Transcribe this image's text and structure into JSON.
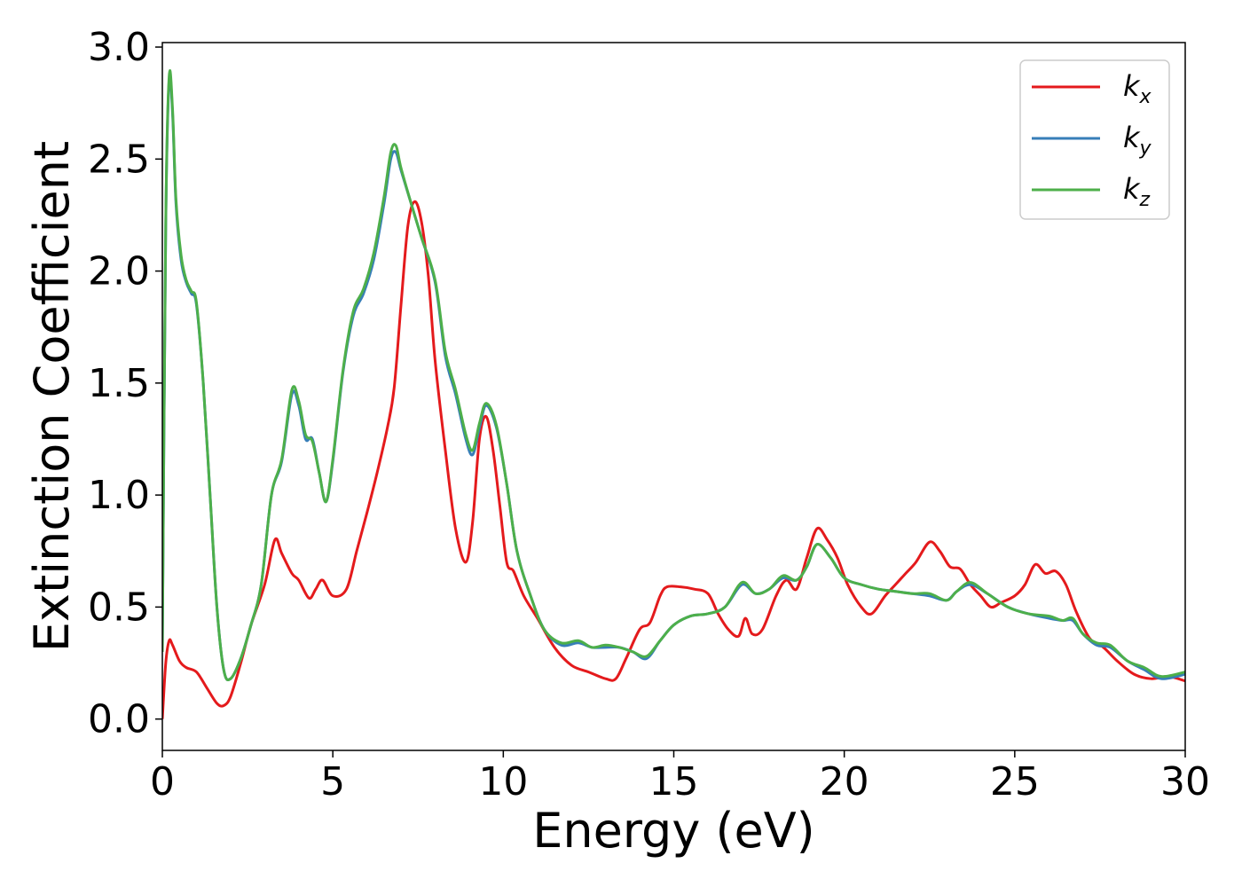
{
  "chart_data": {
    "type": "line",
    "xlabel": "Energy (eV)",
    "ylabel": "Extinction Coefficient",
    "xlim": [
      0,
      30
    ],
    "ylim": [
      -0.14,
      3.02
    ],
    "xticks": [
      0,
      5,
      10,
      15,
      20,
      25,
      30
    ],
    "xtick_labels": [
      "0",
      "5",
      "10",
      "15",
      "20",
      "25",
      "30"
    ],
    "yticks": [
      0.0,
      0.5,
      1.0,
      1.5,
      2.0,
      2.5,
      3.0
    ],
    "ytick_labels": [
      "0.0",
      "0.5",
      "1.0",
      "1.5",
      "2.0",
      "2.5",
      "3.0"
    ],
    "grid": false,
    "legend_position": "top-right",
    "series": [
      {
        "name": "k_x",
        "label_base": "k",
        "label_sub": "x",
        "color": "#e41a1c",
        "x": [
          0,
          0.1,
          0.2,
          0.3,
          0.5,
          0.7,
          1.0,
          1.3,
          1.6,
          1.8,
          2.0,
          2.3,
          2.6,
          3.0,
          3.3,
          3.5,
          3.8,
          4.0,
          4.3,
          4.5,
          4.7,
          5.0,
          5.4,
          5.7,
          6.0,
          6.3,
          6.6,
          6.8,
          7.0,
          7.2,
          7.4,
          7.6,
          7.8,
          8.0,
          8.3,
          8.6,
          8.9,
          9.1,
          9.3,
          9.5,
          9.7,
          9.9,
          10.1,
          10.3,
          10.6,
          11.0,
          11.5,
          12.0,
          12.5,
          13.0,
          13.3,
          13.6,
          14.0,
          14.3,
          14.6,
          14.8,
          15.2,
          15.6,
          16.0,
          16.3,
          16.6,
          16.9,
          17.1,
          17.3,
          17.6,
          18.0,
          18.3,
          18.6,
          18.9,
          19.2,
          19.5,
          19.8,
          20.1,
          20.5,
          20.8,
          21.2,
          21.5,
          21.8,
          22.1,
          22.5,
          22.8,
          23.1,
          23.4,
          23.7,
          24.0,
          24.3,
          24.6,
          25.0,
          25.3,
          25.6,
          25.9,
          26.2,
          26.5,
          26.8,
          27.2,
          27.6,
          28.0,
          28.5,
          29.0,
          29.5,
          30.0
        ],
        "y": [
          0.0,
          0.25,
          0.35,
          0.33,
          0.26,
          0.23,
          0.21,
          0.14,
          0.07,
          0.06,
          0.1,
          0.25,
          0.42,
          0.6,
          0.8,
          0.74,
          0.65,
          0.62,
          0.54,
          0.58,
          0.62,
          0.55,
          0.58,
          0.75,
          0.92,
          1.1,
          1.3,
          1.48,
          1.85,
          2.2,
          2.31,
          2.22,
          1.98,
          1.6,
          1.2,
          0.85,
          0.7,
          0.88,
          1.25,
          1.35,
          1.2,
          0.95,
          0.7,
          0.66,
          0.55,
          0.45,
          0.32,
          0.24,
          0.21,
          0.18,
          0.18,
          0.27,
          0.4,
          0.43,
          0.55,
          0.59,
          0.59,
          0.58,
          0.56,
          0.47,
          0.4,
          0.37,
          0.45,
          0.38,
          0.4,
          0.55,
          0.62,
          0.58,
          0.72,
          0.85,
          0.8,
          0.72,
          0.6,
          0.5,
          0.47,
          0.55,
          0.6,
          0.65,
          0.7,
          0.79,
          0.75,
          0.68,
          0.67,
          0.6,
          0.55,
          0.5,
          0.52,
          0.55,
          0.6,
          0.69,
          0.65,
          0.66,
          0.6,
          0.48,
          0.36,
          0.32,
          0.26,
          0.2,
          0.18,
          0.19,
          0.17
        ]
      },
      {
        "name": "k_y",
        "label_base": "k",
        "label_sub": "y",
        "color": "#377eb8",
        "x": [
          0,
          0.1,
          0.2,
          0.3,
          0.4,
          0.55,
          0.7,
          0.85,
          1.0,
          1.2,
          1.4,
          1.6,
          1.8,
          2.0,
          2.3,
          2.6,
          2.9,
          3.2,
          3.5,
          3.8,
          4.0,
          4.2,
          4.4,
          4.6,
          4.8,
          5.0,
          5.3,
          5.6,
          5.9,
          6.2,
          6.5,
          6.7,
          6.85,
          7.0,
          7.3,
          7.6,
          8.0,
          8.3,
          8.6,
          8.9,
          9.1,
          9.3,
          9.5,
          9.8,
          10.1,
          10.4,
          10.8,
          11.2,
          11.7,
          12.2,
          12.6,
          13.0,
          13.4,
          13.8,
          14.2,
          14.6,
          15.0,
          15.5,
          16.0,
          16.5,
          17.0,
          17.4,
          17.8,
          18.2,
          18.6,
          18.9,
          19.2,
          19.6,
          20.0,
          20.5,
          21.0,
          21.5,
          22.0,
          22.5,
          23.0,
          23.3,
          23.7,
          24.2,
          24.8,
          25.4,
          26.0,
          26.4,
          26.7,
          27.0,
          27.4,
          27.8,
          28.3,
          28.8,
          29.3,
          30.0
        ],
        "y": [
          0.3,
          2.2,
          2.85,
          2.7,
          2.3,
          2.05,
          1.95,
          1.9,
          1.85,
          1.5,
          1.0,
          0.5,
          0.22,
          0.18,
          0.27,
          0.42,
          0.6,
          1.0,
          1.15,
          1.45,
          1.4,
          1.25,
          1.25,
          1.1,
          0.97,
          1.15,
          1.55,
          1.8,
          1.9,
          2.05,
          2.3,
          2.5,
          2.53,
          2.45,
          2.3,
          2.15,
          1.95,
          1.62,
          1.45,
          1.25,
          1.18,
          1.3,
          1.4,
          1.3,
          1.05,
          0.75,
          0.55,
          0.4,
          0.33,
          0.34,
          0.32,
          0.32,
          0.32,
          0.3,
          0.27,
          0.35,
          0.42,
          0.46,
          0.47,
          0.5,
          0.6,
          0.56,
          0.58,
          0.63,
          0.62,
          0.68,
          0.78,
          0.72,
          0.63,
          0.6,
          0.58,
          0.57,
          0.56,
          0.55,
          0.53,
          0.57,
          0.6,
          0.56,
          0.5,
          0.47,
          0.45,
          0.44,
          0.44,
          0.38,
          0.33,
          0.32,
          0.26,
          0.22,
          0.18,
          0.2
        ]
      },
      {
        "name": "k_z",
        "label_base": "k",
        "label_sub": "z",
        "color": "#4daf4a",
        "x": [
          0,
          0.1,
          0.2,
          0.3,
          0.4,
          0.55,
          0.7,
          0.85,
          1.0,
          1.2,
          1.4,
          1.6,
          1.8,
          2.0,
          2.3,
          2.6,
          2.9,
          3.2,
          3.5,
          3.8,
          4.0,
          4.2,
          4.4,
          4.6,
          4.8,
          5.0,
          5.3,
          5.6,
          5.9,
          6.2,
          6.5,
          6.7,
          6.85,
          7.0,
          7.3,
          7.6,
          8.0,
          8.3,
          8.6,
          8.9,
          9.1,
          9.3,
          9.5,
          9.8,
          10.1,
          10.4,
          10.8,
          11.2,
          11.7,
          12.2,
          12.6,
          13.0,
          13.4,
          13.8,
          14.2,
          14.6,
          15.0,
          15.5,
          16.0,
          16.5,
          17.0,
          17.4,
          17.8,
          18.2,
          18.6,
          18.9,
          19.2,
          19.6,
          20.0,
          20.5,
          21.0,
          21.5,
          22.0,
          22.5,
          23.0,
          23.3,
          23.7,
          24.2,
          24.8,
          25.4,
          26.0,
          26.4,
          26.7,
          27.0,
          27.4,
          27.8,
          28.3,
          28.8,
          29.3,
          30.0
        ],
        "y": [
          0.3,
          2.22,
          2.87,
          2.72,
          2.32,
          2.07,
          1.96,
          1.91,
          1.86,
          1.5,
          1.0,
          0.5,
          0.22,
          0.18,
          0.27,
          0.42,
          0.6,
          1.0,
          1.16,
          1.47,
          1.42,
          1.27,
          1.24,
          1.1,
          0.97,
          1.16,
          1.56,
          1.82,
          1.92,
          2.08,
          2.33,
          2.53,
          2.56,
          2.46,
          2.3,
          2.15,
          1.96,
          1.64,
          1.47,
          1.27,
          1.2,
          1.32,
          1.41,
          1.31,
          1.05,
          0.75,
          0.55,
          0.4,
          0.34,
          0.35,
          0.32,
          0.33,
          0.32,
          0.3,
          0.28,
          0.35,
          0.42,
          0.46,
          0.47,
          0.5,
          0.61,
          0.56,
          0.58,
          0.64,
          0.62,
          0.68,
          0.78,
          0.72,
          0.63,
          0.6,
          0.58,
          0.57,
          0.56,
          0.56,
          0.53,
          0.57,
          0.61,
          0.56,
          0.5,
          0.47,
          0.46,
          0.44,
          0.45,
          0.38,
          0.34,
          0.33,
          0.26,
          0.23,
          0.19,
          0.21
        ]
      }
    ]
  }
}
